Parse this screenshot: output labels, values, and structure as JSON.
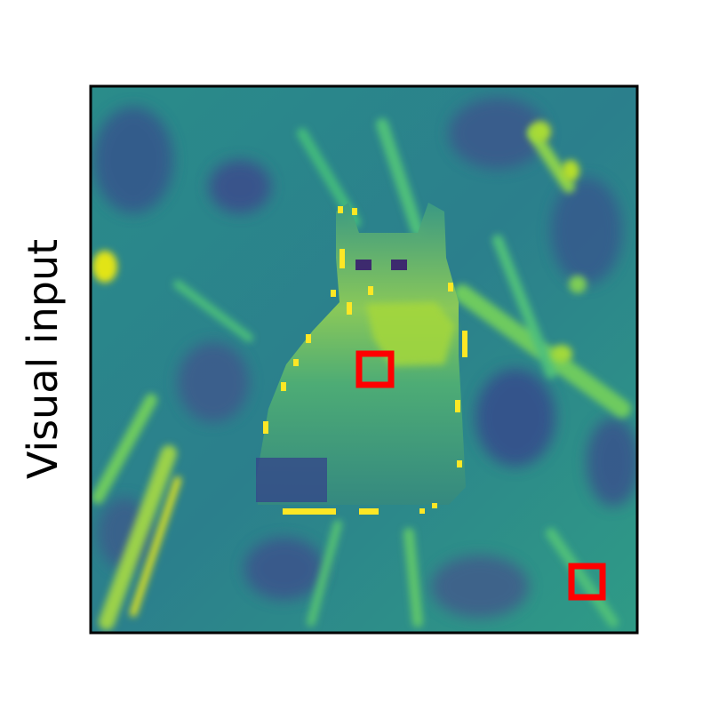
{
  "figure": {
    "ylabel": "Visual input",
    "colormap": "viridis",
    "subject": "cat",
    "highlight_color": "#ff0000",
    "highlight_count": 2,
    "frame_color": "#000000"
  }
}
